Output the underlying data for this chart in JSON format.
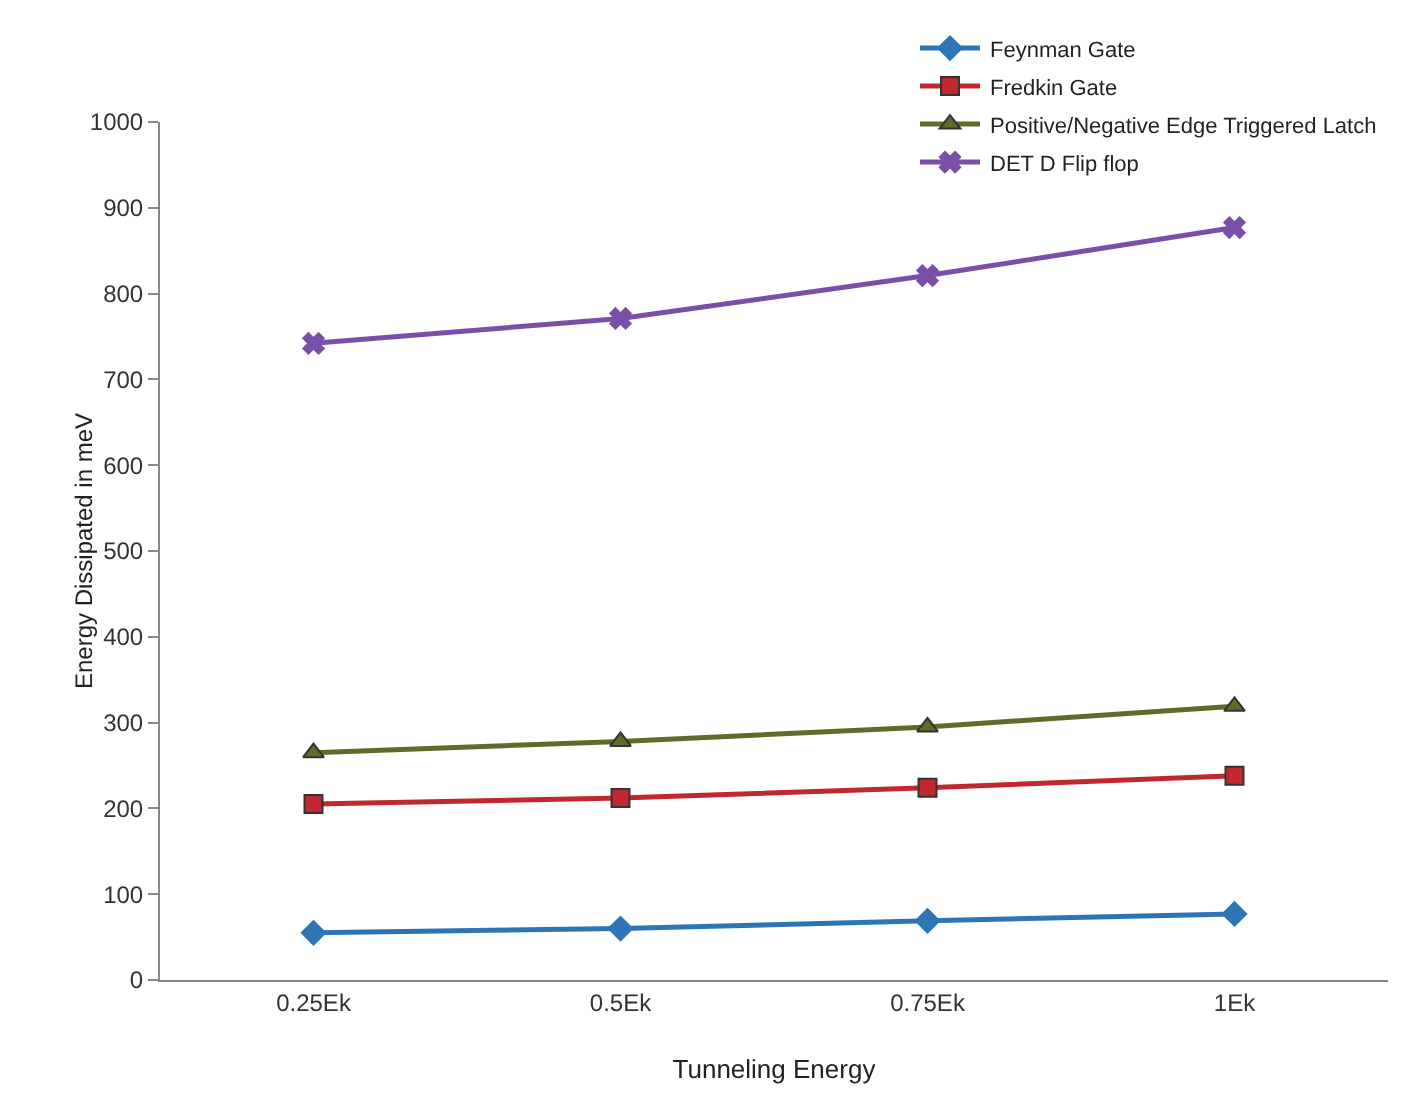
{
  "chart_data": {
    "type": "line",
    "xlabel": "Tunneling Energy",
    "ylabel": "Energy Dissipated in meV",
    "categories": [
      "0.25Ek",
      "0.5Ek",
      "0.75Ek",
      "1Ek"
    ],
    "series": [
      {
        "name": "Feynman Gate",
        "color": "#2e75b6",
        "marker": "diamond",
        "values": [
          55,
          60,
          69,
          77
        ]
      },
      {
        "name": "Fredkin Gate",
        "color": "#c0282d",
        "marker": "square",
        "values": [
          205,
          212,
          224,
          238
        ]
      },
      {
        "name": "Positive/Negative Edge Triggered Latch",
        "color": "#5f6b2a",
        "marker": "triangle",
        "values": [
          265,
          278,
          295,
          319
        ]
      },
      {
        "name": "DET D Flip flop",
        "color": "#7a4fa8",
        "marker": "cross",
        "values": [
          742,
          771,
          821,
          877
        ]
      }
    ],
    "ylim": [
      0,
      1000
    ],
    "yticks": [
      0,
      100,
      200,
      300,
      400,
      500,
      600,
      700,
      800,
      900,
      1000
    ],
    "grid": false,
    "legend": "top right",
    "line_style": "solid"
  }
}
